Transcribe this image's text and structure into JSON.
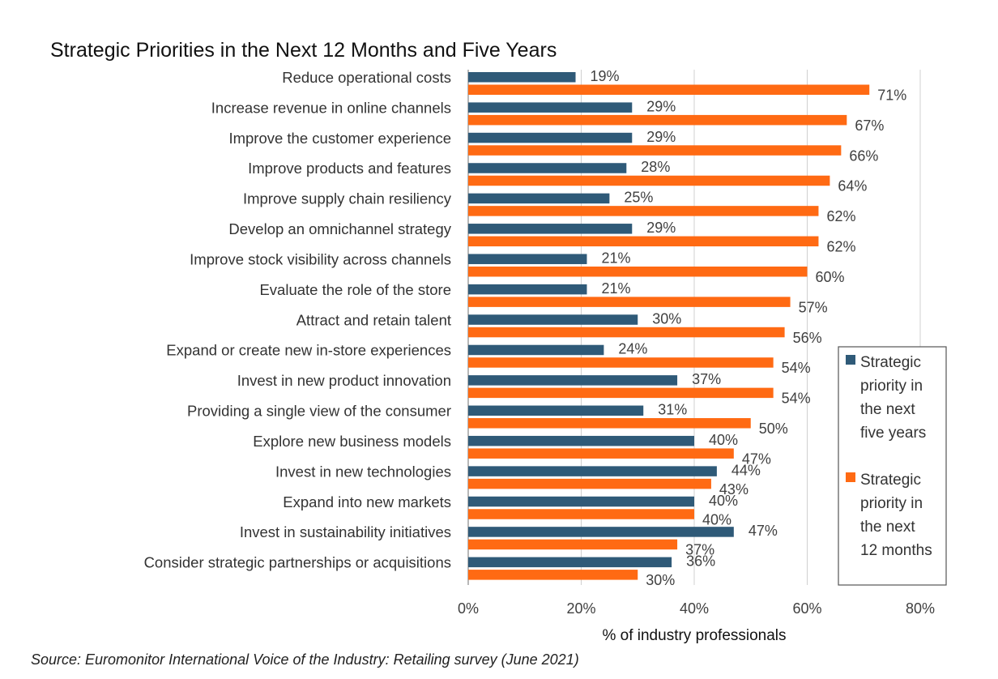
{
  "chart_data": {
    "type": "bar",
    "orientation": "horizontal",
    "title": "Strategic Priorities in the Next 12 Months and Five Years",
    "xlabel": "% of industry professionals",
    "ylabel": "",
    "xlim": [
      0,
      80
    ],
    "xticks": [
      "0%",
      "20%",
      "40%",
      "60%",
      "80%"
    ],
    "grid": "vertical",
    "legend_position": "right",
    "source": "Source: Euromonitor International Voice of the Industry: Retailing survey (June 2021)",
    "categories": [
      "Reduce operational costs",
      "Increase revenue in online channels",
      "Improve the customer experience",
      "Improve products and features",
      "Improve supply chain resiliency",
      "Develop an omnichannel strategy",
      "Improve stock visibility across channels",
      "Evaluate the role of the store",
      "Attract and retain talent",
      "Expand or create new in-store experiences",
      "Invest in new product innovation",
      "Providing a single view of the consumer",
      "Explore new business models",
      "Invest in new technologies",
      "Expand into new markets",
      "Invest in sustainability initiatives",
      "Consider strategic partnerships or acquisitions"
    ],
    "series": [
      {
        "name": "Strategic priority in the next five years",
        "legend_lines": [
          "Strategic",
          "priority in",
          "the next",
          "five years"
        ],
        "color": "#2f5a78",
        "values": [
          19,
          29,
          29,
          28,
          25,
          29,
          21,
          21,
          30,
          24,
          37,
          31,
          40,
          44,
          40,
          47,
          36
        ]
      },
      {
        "name": "Strategic priority in the next 12 months",
        "legend_lines": [
          "Strategic",
          "priority in",
          "the next",
          "12 months"
        ],
        "color": "#ff6a13",
        "values": [
          71,
          67,
          66,
          64,
          62,
          62,
          60,
          57,
          56,
          54,
          54,
          50,
          47,
          43,
          40,
          37,
          30
        ]
      }
    ]
  }
}
